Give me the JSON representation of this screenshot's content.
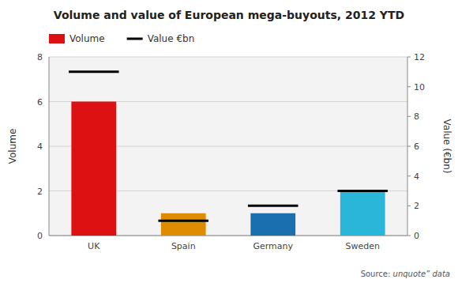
{
  "chart_data": {
    "type": "bar",
    "title": "Volume and value of European mega-buyouts, 2012 YTD",
    "categories": [
      "UK",
      "Spain",
      "Germany",
      "Sweden"
    ],
    "series": [
      {
        "name": "Volume",
        "values": [
          6,
          1,
          1,
          2
        ],
        "colors": [
          "#dd1111",
          "#e08c00",
          "#1a6faf",
          "#29b6d8"
        ]
      },
      {
        "name": "Value €bn",
        "values": [
          11.0,
          1.0,
          2.0,
          3.0
        ],
        "axis": "y2",
        "type": "scatter",
        "marker": "dash",
        "color": "#000000"
      }
    ],
    "ylabel": "Volume",
    "y2label": "Value (€bn)",
    "ylim": [
      0,
      8
    ],
    "yticks": [
      0,
      2,
      4,
      6,
      8
    ],
    "y2lim": [
      0,
      12
    ],
    "y2ticks": [
      0,
      2,
      4,
      6,
      8,
      10,
      12
    ],
    "grid": true,
    "legend": "top-left",
    "annotations": [
      "Source: ",
      "unquote” data"
    ]
  }
}
